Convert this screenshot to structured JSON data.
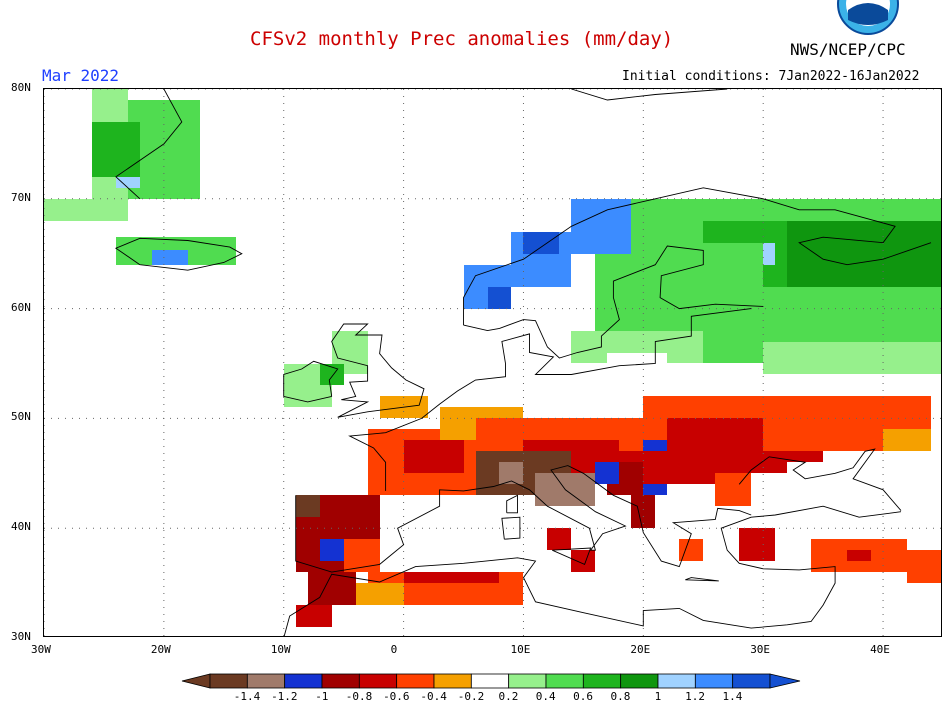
{
  "header": {
    "title": "CFSv2 monthly Prec anomalies (mm/day)",
    "org": "NWS/NCEP/CPC",
    "target_month": "Mar 2022",
    "init_conditions": "Initial conditions: 7Jan2022-16Jan2022"
  },
  "logo": {
    "icon": "noaa-logo-icon"
  },
  "map": {
    "region": "Europe",
    "lon_range": [
      -30,
      45
    ],
    "lat_range": [
      30,
      80
    ],
    "lat_labels": [
      "80N",
      "70N",
      "60N",
      "50N",
      "40N",
      "30N"
    ],
    "lon_labels": [
      "30W",
      "20W",
      "10W",
      "0",
      "10E",
      "20E",
      "30E",
      "40E"
    ],
    "grid": true
  },
  "legend": {
    "labels": [
      "-1.4",
      "-1.2",
      "-1",
      "-0.8",
      "-0.6",
      "-0.4",
      "-0.2",
      "0.2",
      "0.4",
      "0.6",
      "0.8",
      "1",
      "1.2",
      "1.4"
    ],
    "colors": [
      "#6b3a22",
      "#a07a6a",
      "#1432d2",
      "#a00000",
      "#c80000",
      "#ff4000",
      "#f5a000",
      "#ffffff",
      "#96f08c",
      "#50dc50",
      "#1eb41e",
      "#0f960f",
      "#a0d2ff",
      "#3c8cff",
      "#1450d2"
    ]
  }
}
